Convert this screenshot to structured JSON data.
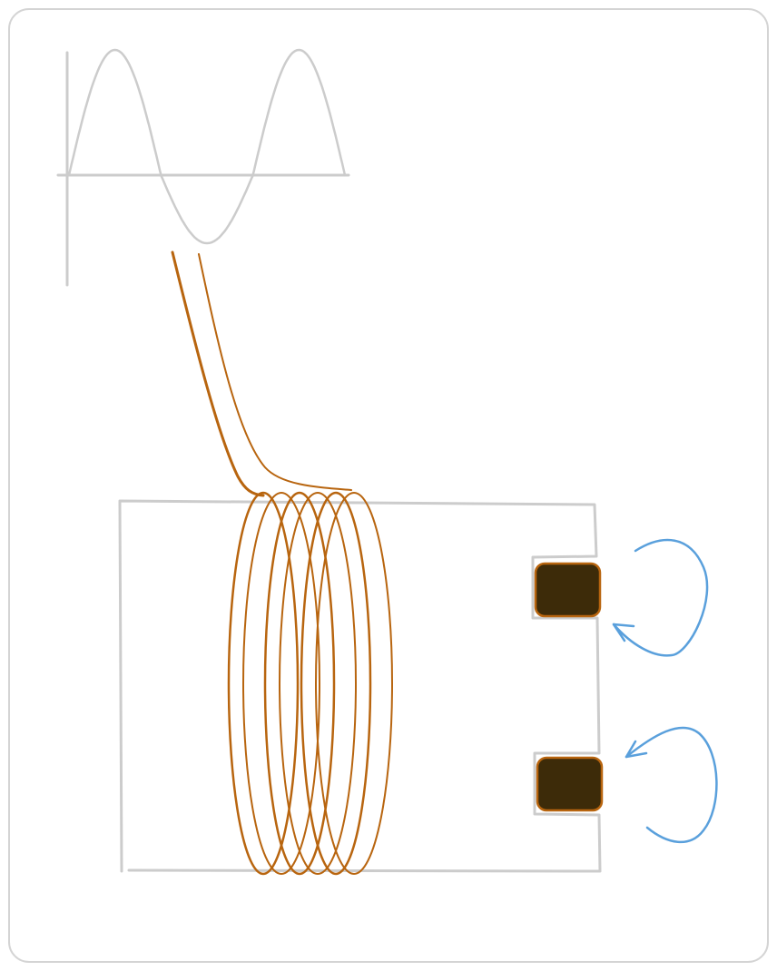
{
  "colors": {
    "frame": "#cccccc",
    "background": "#ffffff",
    "sine_wave": "#cccccc",
    "core": "#cccccc",
    "coil_wire": "#b8650f",
    "workpiece_fill": "#3d2b09",
    "workpiece_stroke": "#b8650f",
    "eddy_arrow": "#5aa0dc"
  },
  "diagram": {
    "title": "",
    "coil_turns": 6,
    "workpieces": 2,
    "eddy_current_loops": 2,
    "sine_wave_cycles": 1.5
  }
}
